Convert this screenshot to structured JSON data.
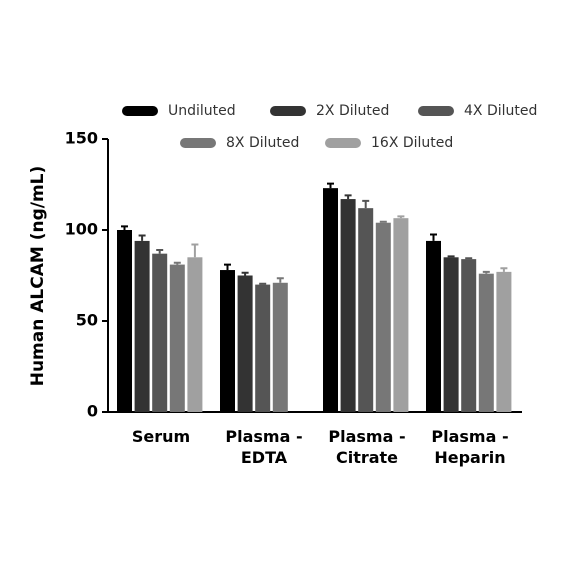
{
  "chart_data": {
    "type": "bar",
    "y_label": "Human ALCAM (ng/mL)",
    "categories": [
      "Serum",
      "Plasma - EDTA",
      "Plasma - Citrate",
      "Plasma - Heparin"
    ],
    "series": [
      {
        "name": "Undiluted",
        "color": "#000000",
        "values": [
          100,
          78,
          123,
          94
        ],
        "errors": [
          2,
          3,
          2.5,
          3.5
        ]
      },
      {
        "name": "2X Diluted",
        "color": "#333333",
        "values": [
          94,
          75,
          117,
          85
        ],
        "errors": [
          3,
          1.5,
          2,
          0.5
        ]
      },
      {
        "name": "4X Diluted",
        "color": "#555555",
        "values": [
          87,
          70,
          112,
          84
        ],
        "errors": [
          2,
          0.5,
          4,
          0.5
        ]
      },
      {
        "name": "8X Diluted",
        "color": "#777777",
        "values": [
          81,
          71,
          104,
          76
        ],
        "errors": [
          1,
          2.5,
          0.5,
          1
        ]
      },
      {
        "name": "16X Diluted",
        "color": "#a0a0a0",
        "values": [
          85,
          null,
          106.5,
          77
        ],
        "errors": [
          7,
          null,
          1,
          2
        ]
      }
    ],
    "ylim": [
      0,
      150
    ],
    "yticks": [
      0,
      50,
      100,
      150
    ]
  }
}
